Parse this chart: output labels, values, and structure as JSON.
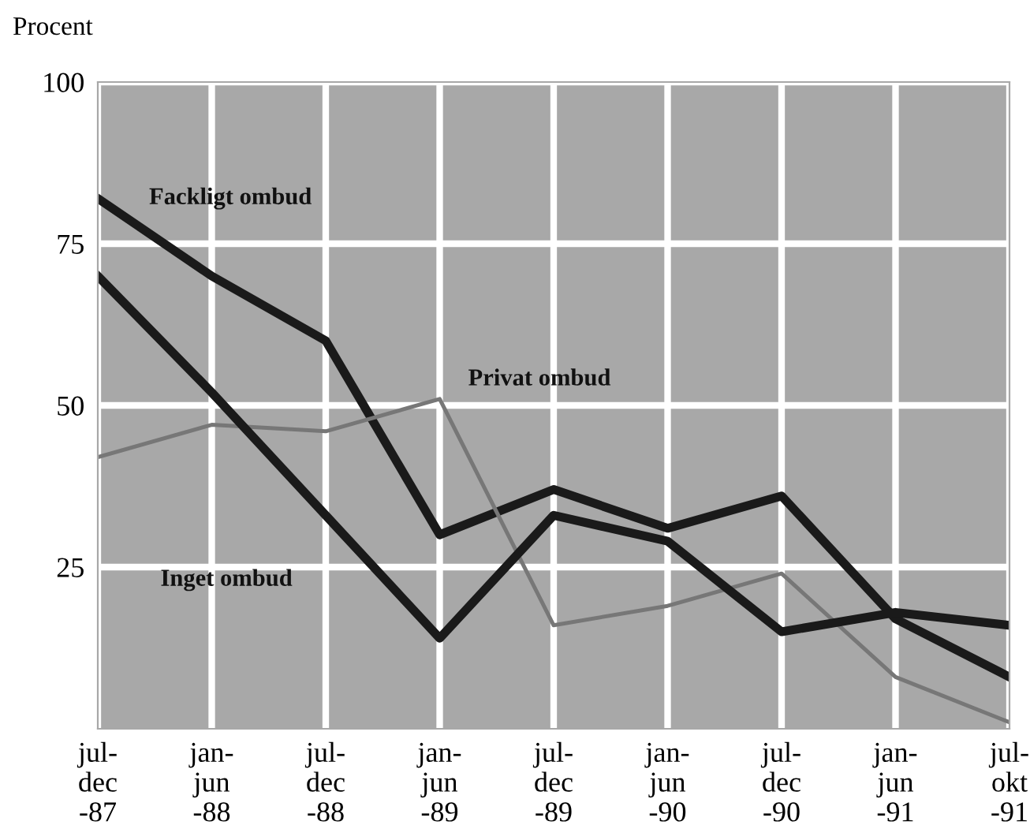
{
  "chart_data": {
    "type": "line",
    "ylabel": "Procent",
    "categories": [
      "jul-\ndec\n-87",
      "jan-\njun\n-88",
      "jul-\ndec\n-88",
      "jan-\njun\n-89",
      "jul-\ndec\n-89",
      "jan-\njun\n-90",
      "jul-\ndec\n-90",
      "jan-\njun\n-91",
      "jul-\nokt\n-91"
    ],
    "series": [
      {
        "name": "Fackligt ombud",
        "color": "#1a1a1a",
        "values": [
          82,
          70,
          60,
          30,
          37,
          31,
          36,
          17,
          8
        ]
      },
      {
        "name": "Privat ombud",
        "color": "#777777",
        "values": [
          42,
          47,
          46,
          51,
          16,
          19,
          24,
          8,
          1
        ]
      },
      {
        "name": "Inget ombud",
        "color": "#1a1a1a",
        "values": [
          70,
          52,
          33,
          14,
          33,
          29,
          15,
          18,
          16
        ]
      }
    ],
    "ylim": [
      0,
      100
    ],
    "yticks": [
      25,
      50,
      75,
      100
    ],
    "grid": true,
    "legend": false,
    "line_style": "solid",
    "marker": "none"
  }
}
